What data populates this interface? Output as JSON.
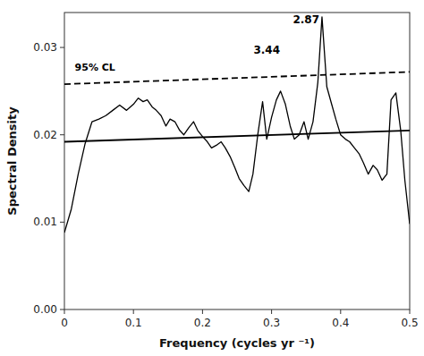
{
  "chart_data": {
    "type": "line",
    "xlabel": "Frequency (cycles yr ⁻¹)",
    "ylabel": "Spectral Density",
    "xlim": [
      0,
      0.5
    ],
    "ylim": [
      0,
      0.034
    ],
    "xticks": [
      0,
      0.1,
      0.2,
      0.3,
      0.4,
      0.5
    ],
    "yticks": [
      {
        "value": 0,
        "label": "0.00"
      },
      0.01,
      0.02,
      0.03
    ],
    "series": [
      {
        "color": "#000000",
        "line_style": "solid",
        "x": [
          0.0,
          0.01,
          0.02,
          0.03,
          0.04,
          0.05,
          0.06,
          0.07,
          0.08,
          0.09,
          0.1,
          0.107,
          0.114,
          0.12,
          0.127,
          0.133,
          0.14,
          0.147,
          0.153,
          0.16,
          0.167,
          0.173,
          0.18,
          0.187,
          0.193,
          0.2,
          0.207,
          0.213,
          0.22,
          0.227,
          0.233,
          0.24,
          0.247,
          0.253,
          0.26,
          0.267,
          0.273,
          0.28,
          0.287,
          0.293,
          0.3,
          0.307,
          0.313,
          0.32,
          0.327,
          0.333,
          0.34,
          0.347,
          0.353,
          0.36,
          0.367,
          0.373,
          0.38,
          0.387,
          0.393,
          0.4,
          0.407,
          0.413,
          0.42,
          0.427,
          0.433,
          0.44,
          0.447,
          0.453,
          0.46,
          0.467,
          0.473,
          0.48,
          0.487,
          0.493,
          0.5
        ],
        "values": [
          0.0088,
          0.0115,
          0.0155,
          0.019,
          0.0215,
          0.0218,
          0.0222,
          0.0228,
          0.0234,
          0.0228,
          0.0235,
          0.0242,
          0.0238,
          0.024,
          0.0232,
          0.0228,
          0.0222,
          0.021,
          0.0218,
          0.0215,
          0.0205,
          0.02,
          0.0208,
          0.0215,
          0.0205,
          0.0198,
          0.0192,
          0.0185,
          0.0188,
          0.0192,
          0.0185,
          0.0175,
          0.0162,
          0.015,
          0.0142,
          0.0135,
          0.0155,
          0.02,
          0.0238,
          0.0195,
          0.022,
          0.024,
          0.025,
          0.0235,
          0.021,
          0.0195,
          0.02,
          0.0215,
          0.0195,
          0.0215,
          0.026,
          0.0335,
          0.0255,
          0.0235,
          0.0218,
          0.02,
          0.0195,
          0.0192,
          0.0185,
          0.0178,
          0.0168,
          0.0155,
          0.0165,
          0.016,
          0.0148,
          0.0155,
          0.024,
          0.0248,
          0.0205,
          0.0148,
          0.0098
        ]
      },
      {
        "color": "#000000",
        "line_style": "solid",
        "x": [
          0.0,
          0.5
        ],
        "values": [
          0.0192,
          0.0205
        ]
      },
      {
        "color": "#000000",
        "line_style": "dashed",
        "x": [
          0.0,
          0.5
        ],
        "values": [
          0.0258,
          0.0272
        ]
      }
    ],
    "annotations": [
      {
        "text": "2.87",
        "x": 0.35,
        "y": 0.0325
      },
      {
        "text": "3.44",
        "x": 0.293,
        "y": 0.029
      },
      {
        "text": "95% CL",
        "x": 0.015,
        "y": 0.027
      }
    ]
  }
}
